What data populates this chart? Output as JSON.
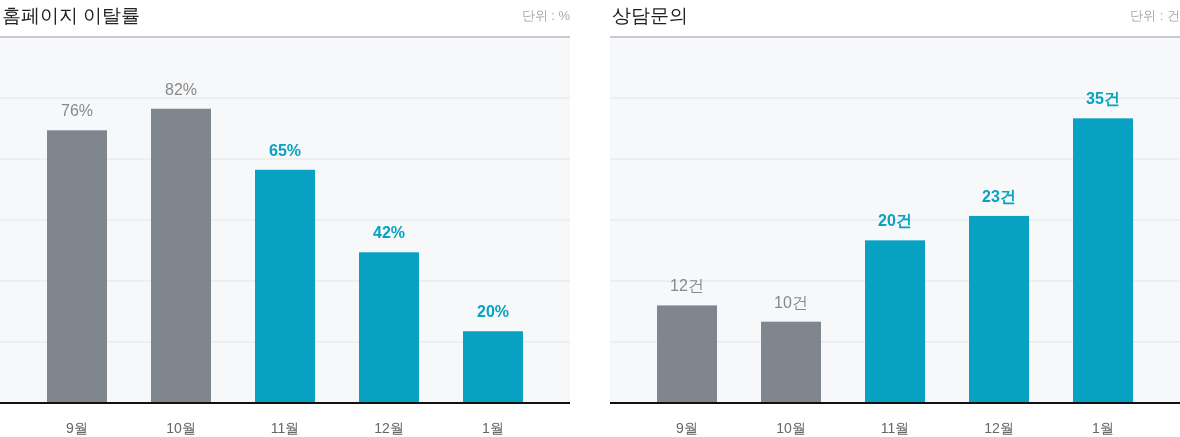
{
  "chart_data": [
    {
      "type": "bar",
      "title": "홈페이지 이탈률",
      "subtitle": "단위 : %",
      "categories": [
        "9월",
        "10월",
        "11월",
        "12월",
        "1월"
      ],
      "values": [
        76,
        82,
        65,
        42,
        20
      ],
      "colors": [
        "#80868e",
        "#80868e",
        "#07a2c2",
        "#07a2c2",
        "#07a2c2"
      ],
      "value_labels": [
        "76%",
        "82%",
        "65%",
        "42%",
        "20%"
      ],
      "ylim": [
        0,
        102
      ],
      "yticks": [
        {
          "value": 17,
          "label": null
        },
        {
          "value": 34,
          "label": null
        },
        {
          "value": 51,
          "label": null
        },
        {
          "value": 68,
          "label": null
        },
        {
          "value": 85,
          "label": null
        }
      ],
      "grid": "y",
      "tick_labels": "x"
    },
    {
      "type": "bar",
      "title": "상담문의",
      "subtitle": "단위 : 건",
      "categories": [
        "9월",
        "10월",
        "11월",
        "12월",
        "1월"
      ],
      "values": [
        12,
        10,
        20,
        23,
        35
      ],
      "colors": [
        "#80868e",
        "#80868e",
        "#07a2c2",
        "#07a2c2",
        "#07a2c2"
      ],
      "value_labels": [
        "12건",
        "10건",
        "20건",
        "23건",
        "35건"
      ],
      "ylim": [
        0,
        45
      ],
      "yticks": [
        {
          "value": 7.5,
          "label": null
        },
        {
          "value": 15,
          "label": null
        },
        {
          "value": 22.5,
          "label": null
        },
        {
          "value": 30,
          "label": null
        },
        {
          "value": 37.5,
          "label": null
        }
      ],
      "grid": "y",
      "tick_labels": "x"
    }
  ]
}
